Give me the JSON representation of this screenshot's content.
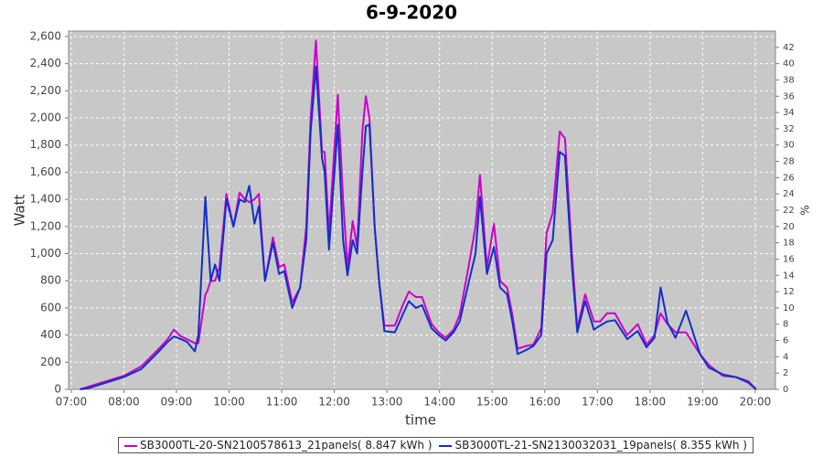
{
  "chart_data": {
    "type": "line",
    "title": "6-9-2020",
    "xlabel": "time",
    "ylabel": "Watt",
    "y2label": "%",
    "x": [
      "07:10",
      "07:20",
      "07:40",
      "08:00",
      "08:20",
      "08:40",
      "08:50",
      "08:57",
      "09:05",
      "09:12",
      "09:21",
      "09:25",
      "09:33",
      "09:35",
      "09:39",
      "09:44",
      "09:49",
      "09:57",
      "10:05",
      "10:12",
      "10:18",
      "10:23",
      "10:29",
      "10:34",
      "10:41",
      "10:50",
      "10:57",
      "11:03",
      "11:12",
      "11:21",
      "11:28",
      "11:33",
      "11:39",
      "11:46",
      "11:49",
      "11:54",
      "12:04",
      "12:10",
      "12:15",
      "12:21",
      "12:26",
      "12:32",
      "12:36",
      "12:40",
      "12:46",
      "12:51",
      "12:57",
      "13:09",
      "13:18",
      "13:25",
      "13:33",
      "13:40",
      "13:51",
      "13:59",
      "14:07",
      "14:16",
      "14:23",
      "14:33",
      "14:41",
      "14:46",
      "14:54",
      "15:02",
      "15:09",
      "15:17",
      "15:23",
      "15:29",
      "15:39",
      "15:47",
      "15:56",
      "16:02",
      "16:09",
      "16:17",
      "16:23",
      "16:31",
      "16:37",
      "16:46",
      "16:56",
      "17:03",
      "17:11",
      "17:20",
      "17:34",
      "17:46",
      "17:56",
      "18:05",
      "18:12",
      "18:20",
      "18:29",
      "18:41",
      "18:57",
      "19:07",
      "19:23",
      "19:38",
      "19:52",
      "20:01"
    ],
    "series": [
      {
        "name": "SB3000TL-20-SN2100578613_21panels( 8.847 kWh )",
        "color": "#cc00cc",
        "values": [
          0,
          20,
          60,
          100,
          170,
          300,
          370,
          440,
          390,
          370,
          340,
          340,
          700,
          720,
          800,
          800,
          900,
          1440,
          1200,
          1450,
          1400,
          1380,
          1400,
          1440,
          800,
          1120,
          900,
          920,
          640,
          750,
          1200,
          2000,
          2570,
          1750,
          1750,
          1150,
          2170,
          1400,
          900,
          1240,
          1050,
          1900,
          2160,
          2000,
          1200,
          800,
          470,
          470,
          620,
          720,
          680,
          680,
          480,
          420,
          380,
          440,
          550,
          900,
          1200,
          1580,
          900,
          1220,
          800,
          750,
          550,
          300,
          320,
          330,
          450,
          1150,
          1300,
          1900,
          1850,
          1000,
          450,
          700,
          500,
          500,
          560,
          560,
          400,
          480,
          330,
          400,
          560,
          480,
          420,
          420,
          260,
          180,
          100,
          90,
          60,
          0
        ]
      },
      {
        "name": "SB3000TL-21-SN2130032031_19panels( 8.355 kWh )",
        "color": "#1030c8",
        "values": [
          0,
          10,
          50,
          90,
          150,
          280,
          350,
          390,
          370,
          350,
          280,
          400,
          1420,
          1200,
          800,
          920,
          800,
          1400,
          1200,
          1400,
          1380,
          1500,
          1220,
          1350,
          800,
          1080,
          850,
          870,
          600,
          750,
          1100,
          1900,
          2380,
          1700,
          1600,
          1030,
          1950,
          1100,
          840,
          1100,
          1000,
          1600,
          1940,
          1950,
          1200,
          800,
          430,
          420,
          550,
          650,
          600,
          620,
          450,
          400,
          360,
          420,
          500,
          780,
          1000,
          1420,
          850,
          1050,
          750,
          700,
          500,
          260,
          290,
          320,
          400,
          1000,
          1100,
          1750,
          1720,
          900,
          420,
          650,
          440,
          470,
          500,
          510,
          370,
          430,
          310,
          380,
          750,
          490,
          380,
          580,
          260,
          160,
          110,
          90,
          50,
          0
        ]
      }
    ],
    "xlim": [
      "06:57",
      "20:23"
    ],
    "xticks": [
      "07:00",
      "08:00",
      "09:00",
      "10:00",
      "11:00",
      "12:00",
      "13:00",
      "14:00",
      "15:00",
      "16:00",
      "17:00",
      "18:00",
      "19:00",
      "20:00"
    ],
    "ylim": [
      0,
      2640
    ],
    "yticks": [
      0,
      200,
      400,
      600,
      800,
      {
        "value": 1000,
        "label": "1,000"
      },
      {
        "value": 1200,
        "label": "1,200"
      },
      {
        "value": 1400,
        "label": "1,400"
      },
      {
        "value": 1600,
        "label": "1,600"
      },
      {
        "value": 1800,
        "label": "1,800"
      },
      {
        "value": 2000,
        "label": "2,000"
      },
      {
        "value": 2200,
        "label": "2,200"
      },
      {
        "value": 2400,
        "label": "2,400"
      },
      {
        "value": 2600,
        "label": "2,600"
      }
    ],
    "y2lim": [
      0,
      44
    ],
    "y2ticks": [
      0,
      2,
      4,
      6,
      8,
      10,
      12,
      14,
      16,
      18,
      20,
      22,
      24,
      26,
      28,
      30,
      32,
      34,
      36,
      38,
      40,
      42
    ],
    "grid": true
  }
}
